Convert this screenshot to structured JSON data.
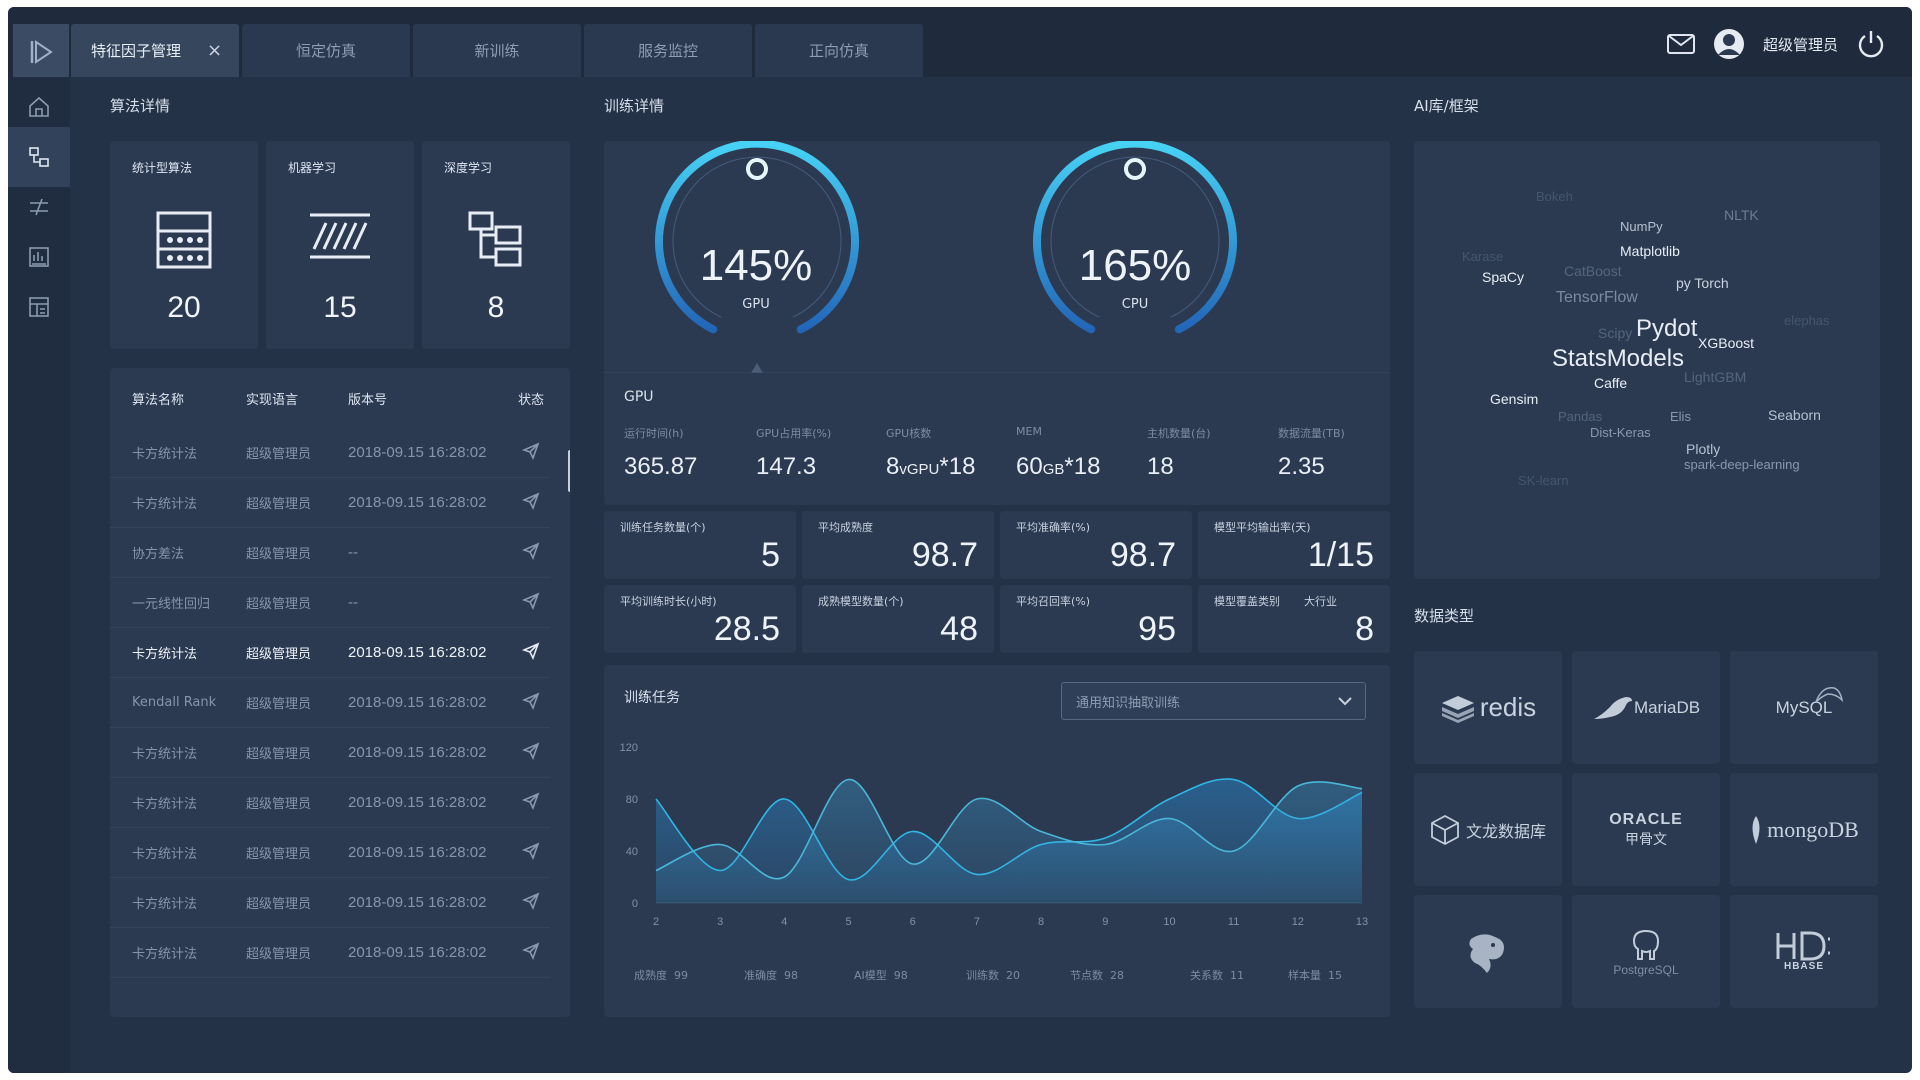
{
  "header": {
    "tabs": [
      {
        "label": "特征因子管理",
        "close": "×",
        "active": true
      },
      {
        "label": "恒定仿真"
      },
      {
        "label": "新训练"
      },
      {
        "label": "服务监控"
      },
      {
        "label": "正向仿真"
      }
    ],
    "user_name": "超级管理员"
  },
  "algo": {
    "title": "算法详情",
    "categories": [
      {
        "label": "统计型算法",
        "count": "20",
        "icon": "abacus-icon"
      },
      {
        "label": "机器学习",
        "count": "15",
        "icon": "hatch-lines-icon"
      },
      {
        "label": "深度学习",
        "count": "8",
        "icon": "tree-structure-icon"
      }
    ],
    "table": {
      "headers": [
        "算法名称",
        "实现语言",
        "版本号",
        "状态"
      ],
      "rows": [
        {
          "name": "卡方统计法",
          "lang": "超级管理员",
          "version": "2018-09.15 16:28:02"
        },
        {
          "name": "卡方统计法",
          "lang": "超级管理员",
          "version": "2018-09.15 16:28:02"
        },
        {
          "name": "协方差法",
          "lang": "超级管理员",
          "version": "--"
        },
        {
          "name": "一元线性回归",
          "lang": "超级管理员",
          "version": "--"
        },
        {
          "name": "卡方统计法",
          "lang": "超级管理员",
          "version": "2018-09.15 16:28:02",
          "highlight": true
        },
        {
          "name": "Kendall Rank",
          "lang": "超级管理员",
          "version": "2018-09.15 16:28:02"
        },
        {
          "name": "卡方统计法",
          "lang": "超级管理员",
          "version": "2018-09.15 16:28:02"
        },
        {
          "name": "卡方统计法",
          "lang": "超级管理员",
          "version": "2018-09.15 16:28:02"
        },
        {
          "name": "卡方统计法",
          "lang": "超级管理员",
          "version": "2018-09.15 16:28:02"
        },
        {
          "name": "卡方统计法",
          "lang": "超级管理员",
          "version": "2018-09.15 16:28:02"
        },
        {
          "name": "卡方统计法",
          "lang": "超级管理员",
          "version": "2018-09.15 16:28:02"
        }
      ]
    }
  },
  "training": {
    "title": "训练详情",
    "gauges": [
      {
        "value": "145%",
        "label": "GPU"
      },
      {
        "value": "165%",
        "label": "CPU"
      }
    ],
    "gpu": {
      "title": "GPU",
      "stats": [
        {
          "label": "运行时间(h)",
          "value": "365.87"
        },
        {
          "label": "GPU占用率(%)",
          "value": "147.3"
        },
        {
          "label": "GPU核数",
          "value": "8",
          "unit": "vGPU",
          "suffix": "*18"
        },
        {
          "label": "MEM",
          "value": "60",
          "unit": "GB",
          "suffix": "*18"
        },
        {
          "label": "主机数量(台)",
          "value": "18"
        },
        {
          "label": "数据流量(TB)",
          "value": "2.35"
        }
      ]
    },
    "kpis": [
      {
        "label": "训练任务数量(个)",
        "value": "5"
      },
      {
        "label": "平均成熟度",
        "value": "98.7"
      },
      {
        "label": "平均准确率(%)",
        "value": "98.7"
      },
      {
        "label": "模型平均输出率(天)",
        "value": "1/15"
      },
      {
        "label": "平均训练时长(小时)",
        "value": "28.5"
      },
      {
        "label": "成熟模型数量(个)",
        "value": "48"
      },
      {
        "label": "平均召回率(%)",
        "value": "95"
      },
      {
        "label": "模型覆盖类别",
        "label2": "大行业",
        "value": "8"
      }
    ],
    "tasks": {
      "title": "训练任务",
      "select_value": "通用知识抽取训练",
      "footer": [
        {
          "label": "成熟度",
          "value": "99"
        },
        {
          "label": "准确度",
          "value": "98"
        },
        {
          "label": "AI模型",
          "value": "98"
        },
        {
          "label": "训练数",
          "value": "20"
        },
        {
          "label": "节点数",
          "value": "28"
        },
        {
          "label": "关系数",
          "value": "11"
        },
        {
          "label": "样本量",
          "value": "15"
        }
      ]
    }
  },
  "chart_data": {
    "type": "area",
    "title": "",
    "xlabel": "",
    "ylabel": "",
    "x": [
      2,
      3,
      4,
      5,
      6,
      7,
      8,
      9,
      10,
      11,
      12,
      13
    ],
    "xlim": [
      2,
      13
    ],
    "ylim": [
      0,
      120
    ],
    "yticks": [
      0,
      40,
      80,
      120
    ],
    "grid": false,
    "series": [
      {
        "color": "#2fb8e6",
        "values": [
          80,
          25,
          80,
          18,
          55,
          22,
          45,
          50,
          80,
          95,
          65,
          85
        ]
      },
      {
        "color": "#4ab6d8",
        "values": [
          25,
          45,
          20,
          95,
          30,
          80,
          55,
          45,
          65,
          40,
          90,
          88
        ]
      }
    ]
  },
  "ai_lib": {
    "title": "AI库/框架",
    "words": [
      {
        "text": "Bokeh",
        "color": "#46566e"
      },
      {
        "text": "NumPy",
        "color": "#b6c1d0"
      },
      {
        "text": "NLTK",
        "color": "#6d7c93"
      },
      {
        "text": "Matplotlib",
        "color": "#e8edf5"
      },
      {
        "text": "Karase",
        "color": "#46566e"
      },
      {
        "text": "CatBoost",
        "color": "#55657c"
      },
      {
        "text": "SpaCy",
        "color": "#e8edf5"
      },
      {
        "text": "py Torch",
        "color": "#c9d2df"
      },
      {
        "text": "TensorFlow",
        "color": "#7b8aa0"
      },
      {
        "text": "elephas",
        "color": "#46566e"
      },
      {
        "text": "Scipy",
        "color": "#55657c"
      },
      {
        "text": "Pydot",
        "color": "#e8edf5"
      },
      {
        "text": "XGBoost",
        "color": "#e8edf5"
      },
      {
        "text": "StatsModels",
        "color": "#e8edf5"
      },
      {
        "text": "LightGBM",
        "color": "#55657c"
      },
      {
        "text": "Caffe",
        "color": "#e8edf5"
      },
      {
        "text": "Gensim",
        "color": "#e8edf5"
      },
      {
        "text": "Pandas",
        "color": "#55657c"
      },
      {
        "text": "Elis",
        "color": "#8a98ad"
      },
      {
        "text": "Seaborn",
        "color": "#b6c1d0"
      },
      {
        "text": "Dist-Keras",
        "color": "#8a98ad"
      },
      {
        "text": "Plotly",
        "color": "#b6c1d0"
      },
      {
        "text": "spark-deep-learning",
        "color": "#8a98ad"
      },
      {
        "text": "SK-learn",
        "color": "#46566e"
      }
    ]
  },
  "data_types": {
    "title": "数据类型",
    "items": [
      {
        "name": "redis",
        "icon": "redis-icon"
      },
      {
        "name": "MariaDB",
        "icon": "seal-icon"
      },
      {
        "name": "MySQL",
        "icon": "dolphin-icon"
      },
      {
        "name": "文龙数据库",
        "icon": "cube-icon"
      },
      {
        "name": "ORACLE",
        "sub": "甲骨文",
        "icon": "oracle-icon"
      },
      {
        "name": "mongoDB",
        "icon": "leaf-icon"
      },
      {
        "name": "",
        "icon": "dragon-icon"
      },
      {
        "name": "PostgreSQL",
        "icon": "elephant-icon"
      },
      {
        "name": "HBASE",
        "icon": "hbase-icon"
      }
    ]
  }
}
